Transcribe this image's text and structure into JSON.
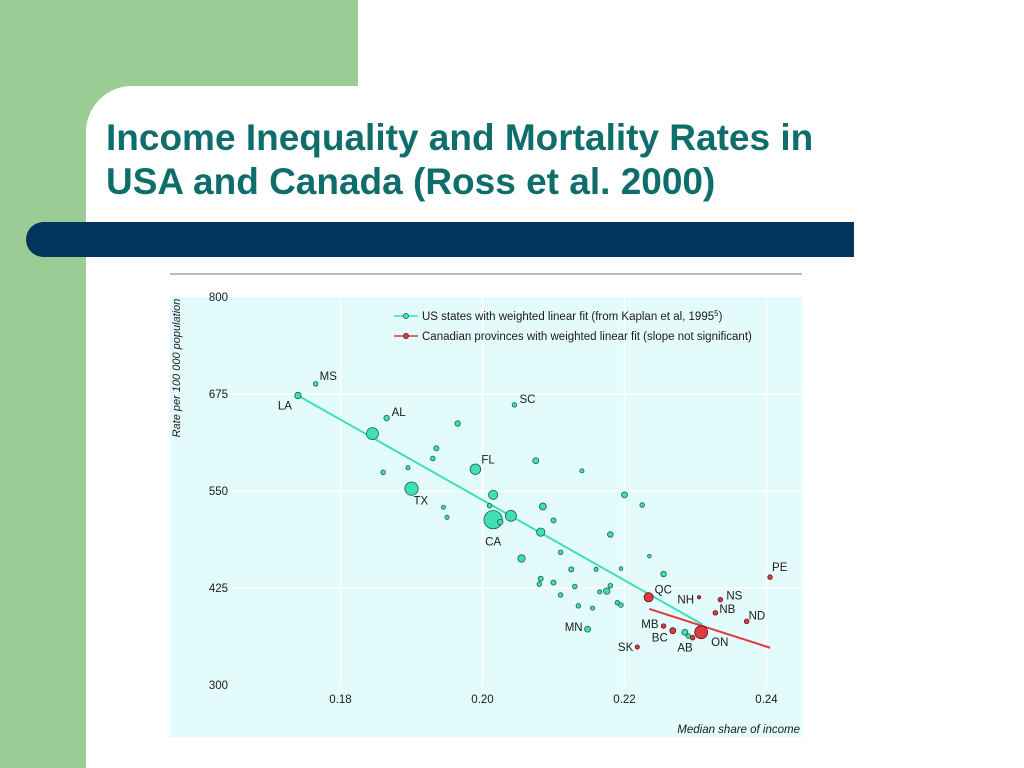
{
  "slide": {
    "title_line1": "Income Inequality and Mortality Rates in",
    "title_line2": "USA and Canada (Ross et al. 2000)"
  },
  "colors": {
    "background_left": "#9ccc95",
    "title": "#0f6e6c",
    "bar": "#02345e",
    "plot_bg": "#e4fbfb",
    "us_series": "#3fe0b4",
    "canada_series": "#e0393f"
  },
  "chart_data": {
    "type": "scatter",
    "title": "",
    "xlabel": "Median share of income",
    "ylabel": "Rate per 100 000 population",
    "xlim": [
      0.165,
      0.245
    ],
    "ylim": [
      300,
      800
    ],
    "xticks": [
      "0.18",
      "0.20",
      "0.22",
      "0.24"
    ],
    "yticks": [
      "300",
      "425",
      "550",
      "675",
      "800"
    ],
    "grid": true,
    "legend_position": "top-right",
    "legend": [
      {
        "label": "US states with weighted linear fit (from Kaplan et al, 1995",
        "sup": "5",
        "suffix": ")"
      },
      {
        "label": "Canadian provinces with weighted linear fit (slope not significant)",
        "sup": "",
        "suffix": ""
      }
    ],
    "series": [
      {
        "name": "US states with weighted linear fit (from Kaplan et al, 1995⁵)",
        "fit": [
          [
            0.174,
            673
          ],
          [
            0.231,
            378
          ]
        ],
        "points": [
          {
            "x": 0.1765,
            "y": 688,
            "s": 1,
            "label": "MS"
          },
          {
            "x": 0.174,
            "y": 673,
            "s": 1.4,
            "label": "LA"
          },
          {
            "x": 0.2045,
            "y": 661,
            "s": 1,
            "label": "SC"
          },
          {
            "x": 0.1865,
            "y": 644,
            "s": 1.2,
            "label": "AL"
          },
          {
            "x": 0.1845,
            "y": 624,
            "s": 2.6,
            "label": ""
          },
          {
            "x": 0.1965,
            "y": 637,
            "s": 1.2,
            "label": ""
          },
          {
            "x": 0.1935,
            "y": 605,
            "s": 1.1,
            "label": ""
          },
          {
            "x": 0.193,
            "y": 592,
            "s": 1,
            "label": ""
          },
          {
            "x": 0.2075,
            "y": 589,
            "s": 1.3,
            "label": ""
          },
          {
            "x": 0.199,
            "y": 578,
            "s": 2.3,
            "label": "FL"
          },
          {
            "x": 0.186,
            "y": 574,
            "s": 1,
            "label": ""
          },
          {
            "x": 0.1895,
            "y": 580,
            "s": 0.9,
            "label": ""
          },
          {
            "x": 0.214,
            "y": 576,
            "s": 0.9,
            "label": ""
          },
          {
            "x": 0.19,
            "y": 553,
            "s": 2.9,
            "label": "TX"
          },
          {
            "x": 0.2015,
            "y": 545,
            "s": 2.0,
            "label": ""
          },
          {
            "x": 0.22,
            "y": 545,
            "s": 1.3,
            "label": ""
          },
          {
            "x": 0.2225,
            "y": 532,
            "s": 1,
            "label": ""
          },
          {
            "x": 0.1945,
            "y": 529,
            "s": 0.9,
            "label": ""
          },
          {
            "x": 0.201,
            "y": 531,
            "s": 1,
            "label": ""
          },
          {
            "x": 0.2085,
            "y": 530,
            "s": 1.5,
            "label": ""
          },
          {
            "x": 0.195,
            "y": 516,
            "s": 0.9,
            "label": ""
          },
          {
            "x": 0.2015,
            "y": 513,
            "s": 4.0,
            "label": "CA"
          },
          {
            "x": 0.204,
            "y": 518,
            "s": 2.4,
            "label": ""
          },
          {
            "x": 0.2025,
            "y": 510,
            "s": 1.2,
            "label": ""
          },
          {
            "x": 0.21,
            "y": 512,
            "s": 1.1,
            "label": ""
          },
          {
            "x": 0.2082,
            "y": 497,
            "s": 1.8,
            "label": ""
          },
          {
            "x": 0.218,
            "y": 494,
            "s": 1.2,
            "label": ""
          },
          {
            "x": 0.2055,
            "y": 463,
            "s": 1.6,
            "label": ""
          },
          {
            "x": 0.211,
            "y": 471,
            "s": 1,
            "label": ""
          },
          {
            "x": 0.2235,
            "y": 466,
            "s": 0.8,
            "label": ""
          },
          {
            "x": 0.2125,
            "y": 449,
            "s": 1.1,
            "label": ""
          },
          {
            "x": 0.216,
            "y": 449,
            "s": 0.9,
            "label": ""
          },
          {
            "x": 0.2195,
            "y": 450,
            "s": 0.8,
            "label": ""
          },
          {
            "x": 0.2255,
            "y": 443,
            "s": 1.2,
            "label": ""
          },
          {
            "x": 0.2082,
            "y": 437,
            "s": 1.1,
            "label": ""
          },
          {
            "x": 0.208,
            "y": 430,
            "s": 1,
            "label": ""
          },
          {
            "x": 0.21,
            "y": 432,
            "s": 1.1,
            "label": ""
          },
          {
            "x": 0.213,
            "y": 427,
            "s": 1,
            "label": ""
          },
          {
            "x": 0.2175,
            "y": 421,
            "s": 1.4,
            "label": ""
          },
          {
            "x": 0.218,
            "y": 428,
            "s": 1.0,
            "label": ""
          },
          {
            "x": 0.2165,
            "y": 420,
            "s": 0.9,
            "label": ""
          },
          {
            "x": 0.211,
            "y": 416,
            "s": 1.0,
            "label": ""
          },
          {
            "x": 0.219,
            "y": 406,
            "s": 1.0,
            "label": ""
          },
          {
            "x": 0.2195,
            "y": 403,
            "s": 1.0,
            "label": ""
          },
          {
            "x": 0.2155,
            "y": 399,
            "s": 0.9,
            "label": ""
          },
          {
            "x": 0.2135,
            "y": 402,
            "s": 1,
            "label": ""
          },
          {
            "x": 0.2148,
            "y": 372,
            "s": 1.3,
            "label": "MN"
          },
          {
            "x": 0.2285,
            "y": 368,
            "s": 1.3,
            "label": ""
          },
          {
            "x": 0.229,
            "y": 363,
            "s": 1.0,
            "label": ""
          }
        ]
      },
      {
        "name": "Canadian provinces with weighted linear fit (slope not significant)",
        "fit": [
          [
            0.2235,
            398
          ],
          [
            0.2405,
            348
          ]
        ],
        "points": [
          {
            "x": 0.2405,
            "y": 439,
            "s": 1,
            "label": "PE"
          },
          {
            "x": 0.2234,
            "y": 413,
            "s": 2.0,
            "label": "QC"
          },
          {
            "x": 0.2335,
            "y": 410,
            "s": 1,
            "label": "NS"
          },
          {
            "x": 0.2305,
            "y": 413,
            "s": 0.7,
            "label": "NH"
          },
          {
            "x": 0.2328,
            "y": 393,
            "s": 1,
            "label": "NB"
          },
          {
            "x": 0.2372,
            "y": 382,
            "s": 1,
            "label": "ND"
          },
          {
            "x": 0.2255,
            "y": 376,
            "s": 1.0,
            "label": "MB"
          },
          {
            "x": 0.2268,
            "y": 370,
            "s": 1.3,
            "label": "BC"
          },
          {
            "x": 0.2308,
            "y": 368,
            "s": 2.8,
            "label": "ON"
          },
          {
            "x": 0.2296,
            "y": 361,
            "s": 1,
            "label": "AB"
          },
          {
            "x": 0.2218,
            "y": 349,
            "s": 0.9,
            "label": "SK"
          }
        ]
      }
    ]
  }
}
